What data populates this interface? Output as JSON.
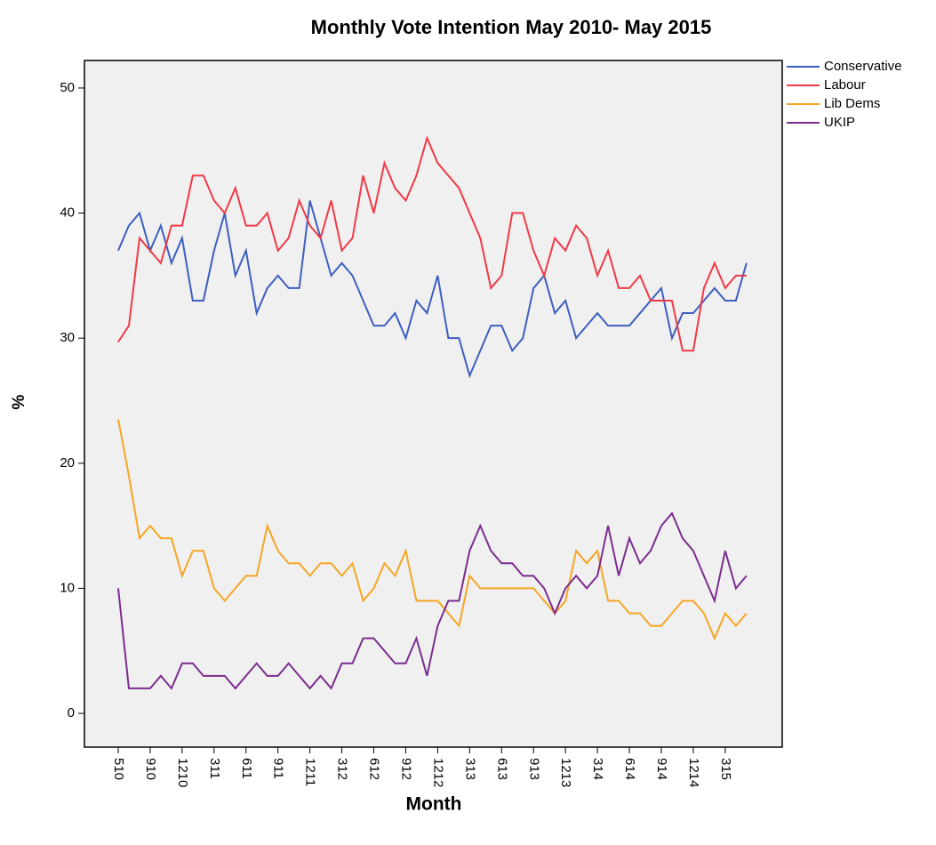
{
  "chart_data": {
    "type": "line",
    "title": "Monthly Vote Intention May 2010- May 2015",
    "x_label": "Month",
    "y_label": "%",
    "categories": [
      "510",
      null,
      null,
      "910",
      null,
      null,
      "1210",
      null,
      null,
      "311",
      null,
      null,
      "611",
      null,
      null,
      "911",
      null,
      null,
      "1211",
      null,
      null,
      "312",
      null,
      null,
      "612",
      null,
      null,
      "912",
      null,
      null,
      "1212",
      null,
      null,
      "313",
      null,
      null,
      "613",
      null,
      null,
      "913",
      null,
      null,
      "1213",
      null,
      null,
      "314",
      null,
      null,
      "614",
      null,
      null,
      "914",
      null,
      null,
      "1214",
      null,
      null,
      "315",
      null,
      null
    ],
    "series": [
      {
        "name": "Conservative",
        "color": "#3d5fbf",
        "values": [
          37,
          39,
          40,
          37,
          39,
          36,
          38,
          33,
          33,
          37,
          40,
          35,
          37,
          32,
          34,
          35,
          34,
          34,
          41,
          38,
          35,
          36,
          35,
          33,
          31,
          31,
          32,
          30,
          33,
          32,
          35,
          30,
          30,
          27,
          29,
          31,
          31,
          29,
          30,
          34,
          35,
          32,
          33,
          30,
          31,
          32,
          31,
          31,
          31,
          32,
          33,
          34,
          30,
          32,
          32,
          33,
          34,
          33,
          33,
          36
        ]
      },
      {
        "name": "Labour",
        "color": "#f03a47",
        "values": [
          29.7,
          31,
          38,
          37,
          36,
          39,
          39,
          43,
          43,
          41,
          40,
          42,
          39,
          39,
          40,
          37,
          38,
          41,
          39,
          38,
          41,
          37,
          38,
          43,
          40,
          44,
          42,
          41,
          43,
          46,
          44,
          43,
          42,
          40,
          38,
          34,
          35,
          40,
          40,
          37,
          35,
          38,
          37,
          39,
          38,
          35,
          37,
          34,
          34,
          35,
          33,
          33,
          33,
          29,
          29,
          34,
          36,
          34,
          35,
          35
        ]
      },
      {
        "name": "Lib Dems",
        "color": "#f5a623",
        "values": [
          23.5,
          19,
          14,
          15,
          14,
          14,
          11,
          13,
          13,
          10,
          9,
          10,
          11,
          11,
          15,
          13,
          12,
          12,
          11,
          12,
          12,
          11,
          12,
          9,
          10,
          12,
          11,
          13,
          9,
          9,
          9,
          8,
          7,
          11,
          10,
          10,
          10,
          10,
          10,
          10,
          9,
          8,
          9,
          13,
          12,
          13,
          9,
          9,
          8,
          8,
          7,
          7,
          8,
          9,
          9,
          8,
          6,
          8,
          7,
          8
        ]
      },
      {
        "name": "UKIP",
        "color": "#7b2d8e",
        "values": [
          10,
          2,
          2,
          2,
          3,
          2,
          4,
          4,
          3,
          3,
          3,
          2,
          3,
          4,
          3,
          3,
          4,
          3,
          2,
          3,
          2,
          4,
          4,
          6,
          6,
          5,
          4,
          4,
          6,
          3,
          7,
          9,
          9,
          13,
          15,
          13,
          12,
          12,
          11,
          11,
          10,
          8,
          10,
          11,
          10,
          11,
          15,
          11,
          14,
          12,
          13,
          15,
          16,
          14,
          13,
          11,
          9,
          13,
          10,
          11
        ]
      }
    ],
    "ylim": [
      -2.7,
      52.2
    ],
    "yticks": [
      0,
      10,
      20,
      30,
      40,
      50
    ],
    "grid": false,
    "legend": "right"
  }
}
